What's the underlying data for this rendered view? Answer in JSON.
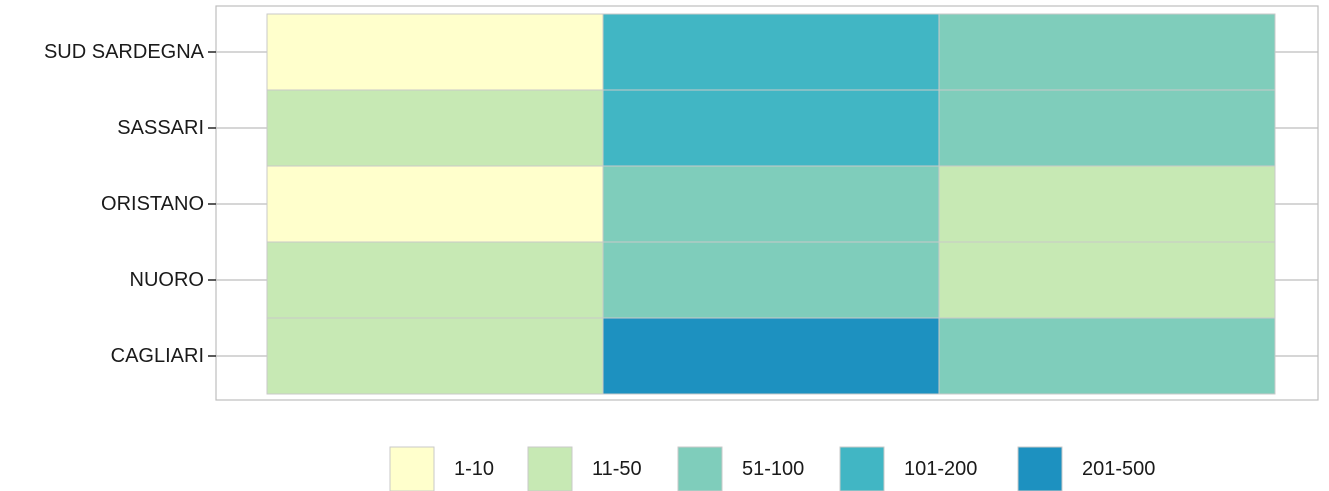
{
  "chart_data": {
    "type": "heatmap",
    "title": "",
    "xlabel": "",
    "ylabel": "",
    "x_categories": [
      "",
      "",
      ""
    ],
    "y_categories": [
      "SUD SARDEGNA",
      "SASSARI",
      "ORISTANO",
      "NUORO",
      "CAGLIARI"
    ],
    "bins": [
      {
        "label": "1-10",
        "color": "#ffffcc"
      },
      {
        "label": "11-50",
        "color": "#c7e9b4"
      },
      {
        "label": "51-100",
        "color": "#7fcdbb"
      },
      {
        "label": "101-200",
        "color": "#41b6c4"
      },
      {
        "label": "201-500",
        "color": "#1d91c0"
      }
    ],
    "cells": [
      [
        "1-10",
        "101-200",
        "51-100"
      ],
      [
        "11-50",
        "101-200",
        "51-100"
      ],
      [
        "1-10",
        "51-100",
        "11-50"
      ],
      [
        "11-50",
        "51-100",
        "11-50"
      ],
      [
        "11-50",
        "201-500",
        "51-100"
      ]
    ],
    "legend_position": "bottom",
    "grid": true
  }
}
